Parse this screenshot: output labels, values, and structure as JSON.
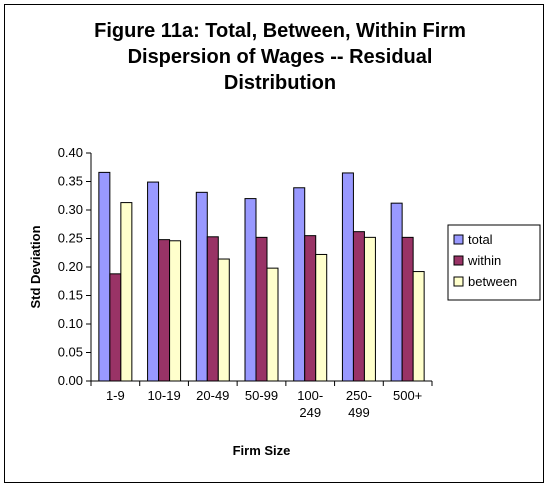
{
  "chart_data": {
    "type": "bar",
    "title": "Figure 11a: Total, Between, Within Firm\nDispersion of Wages -- Residual\nDistribution",
    "xlabel": "Firm Size",
    "ylabel": "Std Deviation",
    "ylim": [
      0,
      0.4
    ],
    "ytick_step": 0.05,
    "ytick_labels": [
      "0.00",
      "0.05",
      "0.10",
      "0.15",
      "0.20",
      "0.25",
      "0.30",
      "0.35",
      "0.40"
    ],
    "categories": [
      "1-9",
      "10-19",
      "20-49",
      "50-99",
      "100-\n249",
      "250-\n499",
      "500+"
    ],
    "series": [
      {
        "name": "total",
        "color": "#9999FF",
        "values": [
          0.366,
          0.349,
          0.331,
          0.32,
          0.339,
          0.365,
          0.312
        ]
      },
      {
        "name": "within",
        "color": "#993366",
        "values": [
          0.188,
          0.248,
          0.253,
          0.252,
          0.255,
          0.262,
          0.252
        ]
      },
      {
        "name": "between",
        "color": "#FFFFCC",
        "values": [
          0.313,
          0.246,
          0.214,
          0.198,
          0.222,
          0.252,
          0.192
        ]
      }
    ],
    "legend_position": "right",
    "grid": false
  }
}
